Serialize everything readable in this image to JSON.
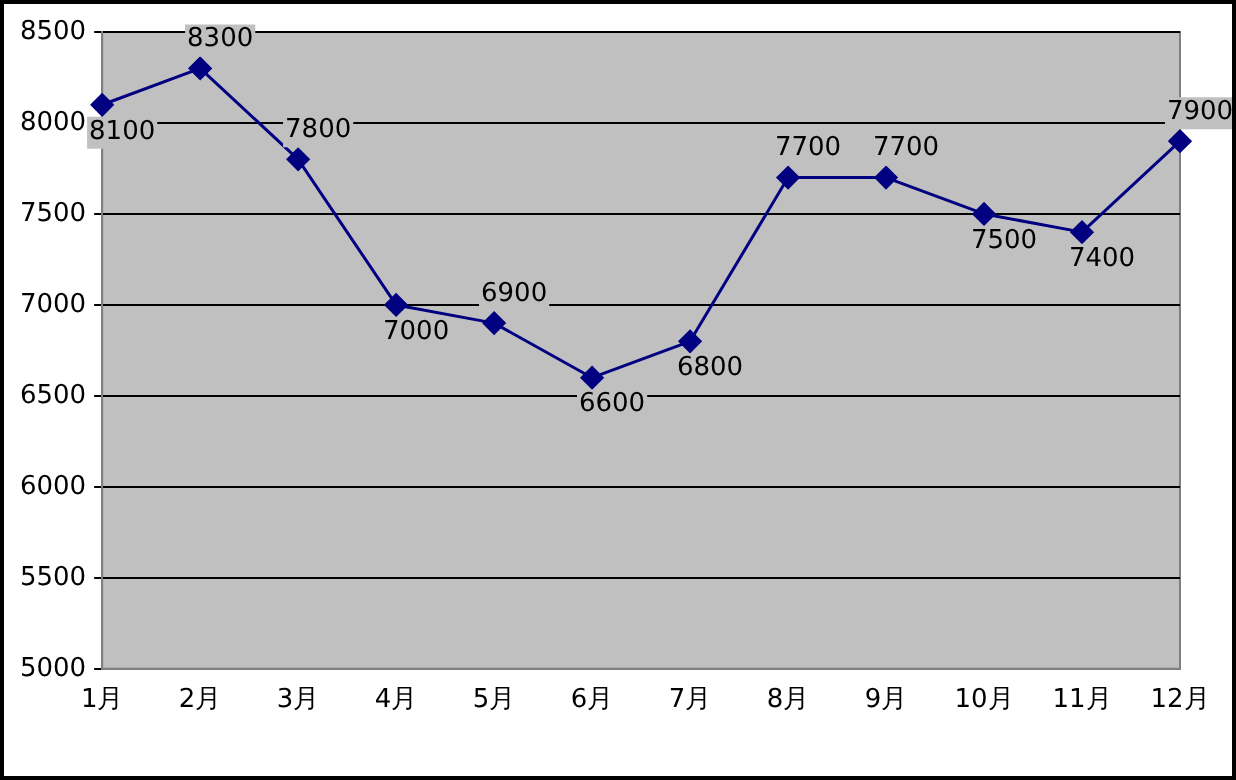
{
  "chart_data": {
    "type": "line",
    "categories": [
      "1月",
      "2月",
      "3月",
      "4月",
      "5月",
      "6月",
      "7月",
      "8月",
      "9月",
      "10月",
      "11月",
      "12月"
    ],
    "series": [
      {
        "color": "#000080",
        "values": [
          8100,
          8300,
          7800,
          7000,
          6900,
          6600,
          6800,
          7700,
          7700,
          7500,
          7400,
          7900
        ]
      }
    ],
    "ylim": [
      5000,
      8500
    ],
    "yticks": [
      5000,
      5500,
      6000,
      6500,
      7000,
      7500,
      8000,
      8500
    ],
    "grid": "y",
    "legend": false,
    "marker": "diamond",
    "line_style": "solid",
    "data_labels": true
  }
}
